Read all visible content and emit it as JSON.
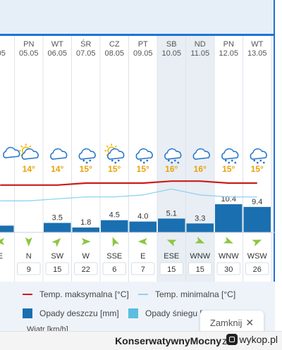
{
  "chart_data": {
    "type": "bar",
    "title": "",
    "xlabel": "",
    "ylabel": "",
    "days": [
      {
        "day": "",
        "date": ".05",
        "temp_label": "",
        "icon": "partial-cloud-icon",
        "rain": 2.5,
        "wind_dir": "E",
        "wind_speed": "",
        "partial": true
      },
      {
        "day": "PN",
        "date": "05.05",
        "temp_label": "14°",
        "icon": "sun-cloud-icon",
        "rain": 0,
        "wind_dir": "N",
        "wind_speed": "9"
      },
      {
        "day": "WT",
        "date": "06.05",
        "temp_label": "14°",
        "icon": "cloud-icon",
        "rain": 3.5,
        "wind_dir": "SW",
        "wind_speed": "15"
      },
      {
        "day": "ŚR",
        "date": "07.05",
        "temp_label": "15°",
        "icon": "cloud-rain-icon",
        "rain": 1.8,
        "wind_dir": "W",
        "wind_speed": "22"
      },
      {
        "day": "CZ",
        "date": "08.05",
        "temp_label": "15°",
        "icon": "sun-cloud-rain-icon",
        "rain": 4.5,
        "wind_dir": "SSE",
        "wind_speed": "6"
      },
      {
        "day": "PT",
        "date": "09.05",
        "temp_label": "15°",
        "icon": "cloud-rain-icon",
        "rain": 4.0,
        "wind_dir": "E",
        "wind_speed": "7"
      },
      {
        "day": "SB",
        "date": "10.05",
        "temp_label": "16°",
        "icon": "cloud-heavy-rain-icon",
        "rain": 5.1,
        "wind_dir": "ESE",
        "wind_speed": "15",
        "weekend": true
      },
      {
        "day": "ND",
        "date": "11.05",
        "temp_label": "16°",
        "icon": "cloud-icon",
        "rain": 3.3,
        "wind_dir": "WNW",
        "wind_speed": "15",
        "weekend": true
      },
      {
        "day": "PN",
        "date": "12.05",
        "temp_label": "15°",
        "icon": "cloud-heavy-rain-icon",
        "rain": 10.4,
        "wind_dir": "WNW",
        "wind_speed": "30"
      },
      {
        "day": "WT",
        "date": "13.05",
        "temp_label": "15°",
        "icon": "cloud-heavy-rain-icon",
        "rain": 9.4,
        "wind_dir": "WSW",
        "wind_speed": "26"
      }
    ],
    "rain_labels": [
      "",
      "",
      "3.5",
      "1.8",
      "4.5",
      "4.0",
      "5.1",
      "3.3",
      "10.4",
      "9.4"
    ],
    "temp_max": [
      14,
      14,
      14,
      15,
      15,
      15,
      16,
      16,
      15,
      15
    ],
    "temp_min": [
      6,
      6,
      7,
      8,
      8,
      9,
      12,
      9,
      8,
      8
    ],
    "rain_ylim": [
      0,
      12
    ],
    "colors": {
      "rain_bar": "#1a6fb0",
      "temp_max_line": "#cc1a1a",
      "temp_min_line": "#8fd3f0",
      "snow": "#5bbde0",
      "header_band": "#e6eef7",
      "accent": "#1c73d8",
      "weekend": "#e8eef3"
    }
  },
  "legend": {
    "temp_max": "Temp. maksymalna [°C]",
    "temp_min": "Temp. minimalna [°C]",
    "rain": "Opady deszczu [mm]",
    "snow": "Opady śniegu [",
    "wind": "Wiatr [km/h]"
  },
  "popup": {
    "close_label": "Zamknij",
    "close_symbol": "✕"
  },
  "footer": {
    "username": "KonserwatywnyMocny",
    "joiner": "z",
    "site": "wykop.pl"
  }
}
